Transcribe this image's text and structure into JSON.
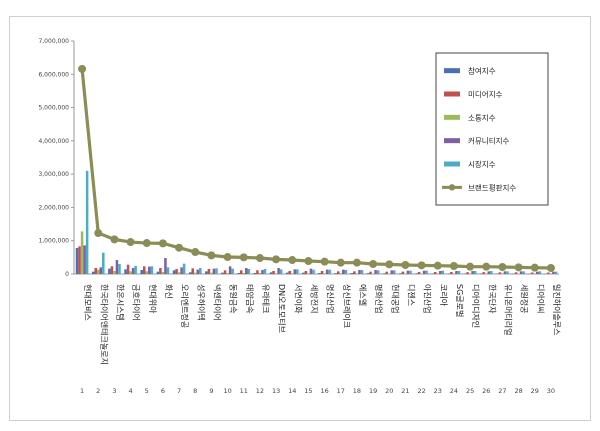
{
  "chart_data": {
    "type": "bar",
    "categories": [
      "현대모비스",
      "한국타이어앤테크놀로지",
      "한온시스템",
      "금호타이어",
      "현대위아",
      "화신",
      "오리엔트정공",
      "성우하이텍",
      "넥센타이어",
      "동원금속",
      "태양금속",
      "유라테크",
      "DN오토모티브",
      "서연이화",
      "세방전지",
      "명신산업",
      "상신브레이크",
      "에스엘",
      "평화산업",
      "현대공업",
      "디젠스",
      "아진산업",
      "코리아",
      "SG글로벌",
      "디아이디자인",
      "한국단자",
      "유니온머티리얼",
      "세원정공",
      "디아이씨",
      "일진하이솔루스"
    ],
    "category_index": [
      "1",
      "2",
      "3",
      "4",
      "5",
      "6",
      "7",
      "8",
      "9",
      "10",
      "11",
      "12",
      "13",
      "14",
      "15",
      "16",
      "17",
      "18",
      "19",
      "20",
      "21",
      "22",
      "23",
      "24",
      "25",
      "26",
      "27",
      "28",
      "29",
      "30"
    ],
    "ylim": [
      0,
      7000000
    ],
    "yticks": [
      "0",
      "1,000,000",
      "2,000,000",
      "3,000,000",
      "4,000,000",
      "5,000,000",
      "6,000,000",
      "7,000,000"
    ],
    "ytick_values": [
      0,
      1000000,
      2000000,
      3000000,
      4000000,
      5000000,
      6000000,
      7000000
    ],
    "grid": false,
    "legend_position": "top-right",
    "series": [
      {
        "name": "참여지수",
        "color": "#4a6fb5",
        "values": [
          780000,
          70000,
          160000,
          140000,
          120000,
          70000,
          110000,
          50000,
          80000,
          40000,
          30000,
          30000,
          50000,
          40000,
          40000,
          30000,
          25000,
          30000,
          25000,
          20000,
          20000,
          20000,
          15000,
          15000,
          15000,
          15000,
          12000,
          12000,
          10000,
          10000
        ]
      },
      {
        "name": "미디어지수",
        "color": "#c0504d",
        "values": [
          830000,
          180000,
          230000,
          280000,
          230000,
          180000,
          150000,
          170000,
          150000,
          110000,
          110000,
          110000,
          90000,
          90000,
          90000,
          90000,
          80000,
          80000,
          70000,
          70000,
          70000,
          60000,
          60000,
          60000,
          55000,
          55000,
          50000,
          50000,
          45000,
          45000
        ]
      },
      {
        "name": "소통지수",
        "color": "#9bbb59",
        "values": [
          1280000,
          130000,
          90000,
          80000,
          80000,
          60000,
          50000,
          40000,
          40000,
          30000,
          30000,
          30000,
          20000,
          20000,
          20000,
          20000,
          20000,
          20000,
          15000,
          15000,
          15000,
          15000,
          12000,
          12000,
          10000,
          10000,
          10000,
          10000,
          8000,
          8000
        ]
      },
      {
        "name": "커뮤니티지수",
        "color": "#7f5fa6",
        "values": [
          860000,
          200000,
          420000,
          180000,
          220000,
          480000,
          200000,
          130000,
          160000,
          230000,
          180000,
          120000,
          180000,
          140000,
          160000,
          130000,
          130000,
          120000,
          120000,
          110000,
          100000,
          100000,
          90000,
          90000,
          90000,
          80000,
          80000,
          80000,
          70000,
          70000
        ]
      },
      {
        "name": "시장지수",
        "color": "#4bacc6",
        "values": [
          3100000,
          640000,
          300000,
          240000,
          230000,
          200000,
          310000,
          180000,
          170000,
          160000,
          150000,
          150000,
          140000,
          140000,
          130000,
          130000,
          120000,
          120000,
          110000,
          110000,
          100000,
          100000,
          100000,
          90000,
          90000,
          90000,
          80000,
          80000,
          80000,
          70000
        ]
      },
      {
        "name": "브랜드평판지수",
        "color": "#8c8c56",
        "type": "line",
        "values": [
          6160000,
          1230000,
          1040000,
          960000,
          930000,
          920000,
          790000,
          660000,
          560000,
          510000,
          500000,
          480000,
          440000,
          420000,
          390000,
          370000,
          340000,
          340000,
          300000,
          290000,
          270000,
          260000,
          250000,
          240000,
          220000,
          220000,
          210000,
          200000,
          190000,
          180000
        ]
      }
    ]
  }
}
